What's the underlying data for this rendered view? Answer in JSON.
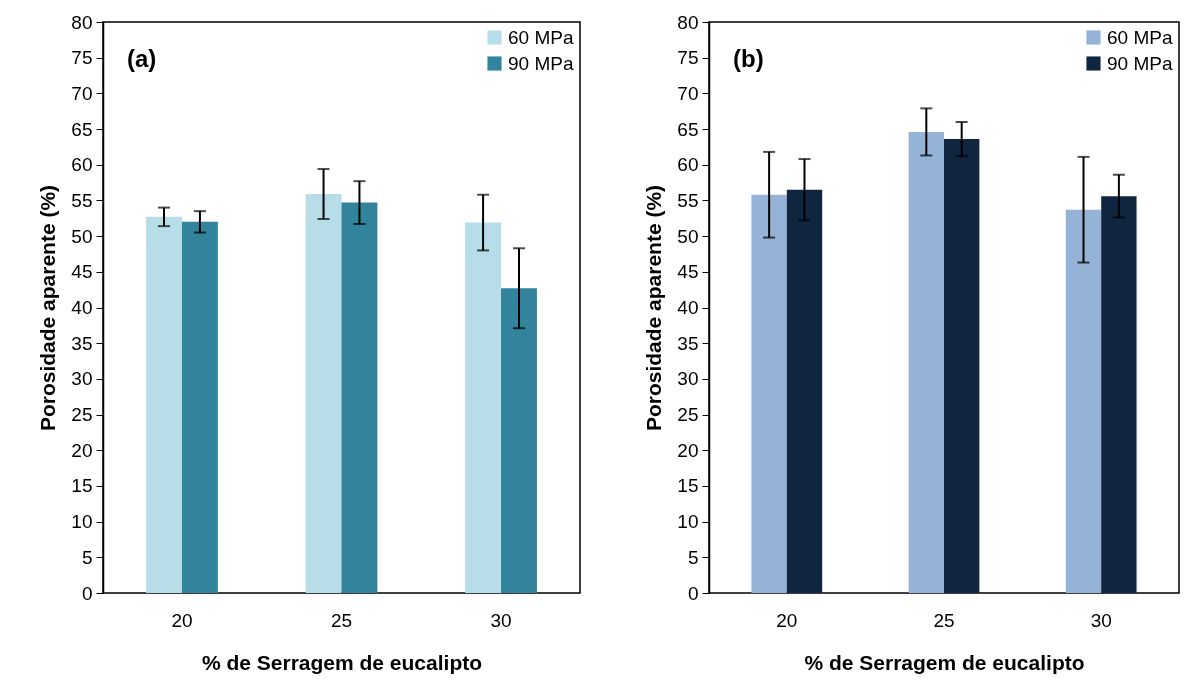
{
  "chart_data": [
    {
      "type": "bar",
      "categories": [
        "20",
        "25",
        "30"
      ],
      "xlabel": "% de Serragem de eucalipto",
      "ylabel": "Porosidade aparente (%)",
      "annotations": [
        "(a)"
      ],
      "ylim": [
        0,
        80
      ],
      "yticks": [
        0,
        5,
        10,
        15,
        20,
        25,
        30,
        35,
        40,
        45,
        50,
        55,
        60,
        65,
        70,
        75,
        80
      ],
      "grid": false,
      "legend": "top right",
      "series": [
        {
          "name": "60 MPa",
          "color": "#b7dde8",
          "values": [
            52.7,
            55.9,
            51.9
          ],
          "errors": [
            1.3,
            3.5,
            3.9
          ]
        },
        {
          "name": "90 MPa",
          "color": "#31849b",
          "values": [
            52.0,
            54.7,
            42.7
          ],
          "errors": [
            1.5,
            3.0,
            5.6
          ]
        }
      ]
    },
    {
      "type": "bar",
      "categories": [
        "20",
        "25",
        "30"
      ],
      "xlabel": "% de Serragem de eucalipto",
      "ylabel": "Porosidade aparente (%)",
      "annotations": [
        "(b)"
      ],
      "ylim": [
        0,
        80
      ],
      "yticks": [
        0,
        5,
        10,
        15,
        20,
        25,
        30,
        35,
        40,
        45,
        50,
        55,
        60,
        65,
        70,
        75,
        80
      ],
      "grid": false,
      "legend": "top right",
      "series": [
        {
          "name": "60 MPa",
          "color": "#95b3d7",
          "values": [
            55.8,
            64.6,
            53.7
          ],
          "errors": [
            6.0,
            3.3,
            7.4
          ]
        },
        {
          "name": "90 MPa",
          "color": "#10253f",
          "values": [
            56.5,
            63.6,
            55.6
          ],
          "errors": [
            4.3,
            2.4,
            3.0
          ]
        }
      ]
    }
  ]
}
